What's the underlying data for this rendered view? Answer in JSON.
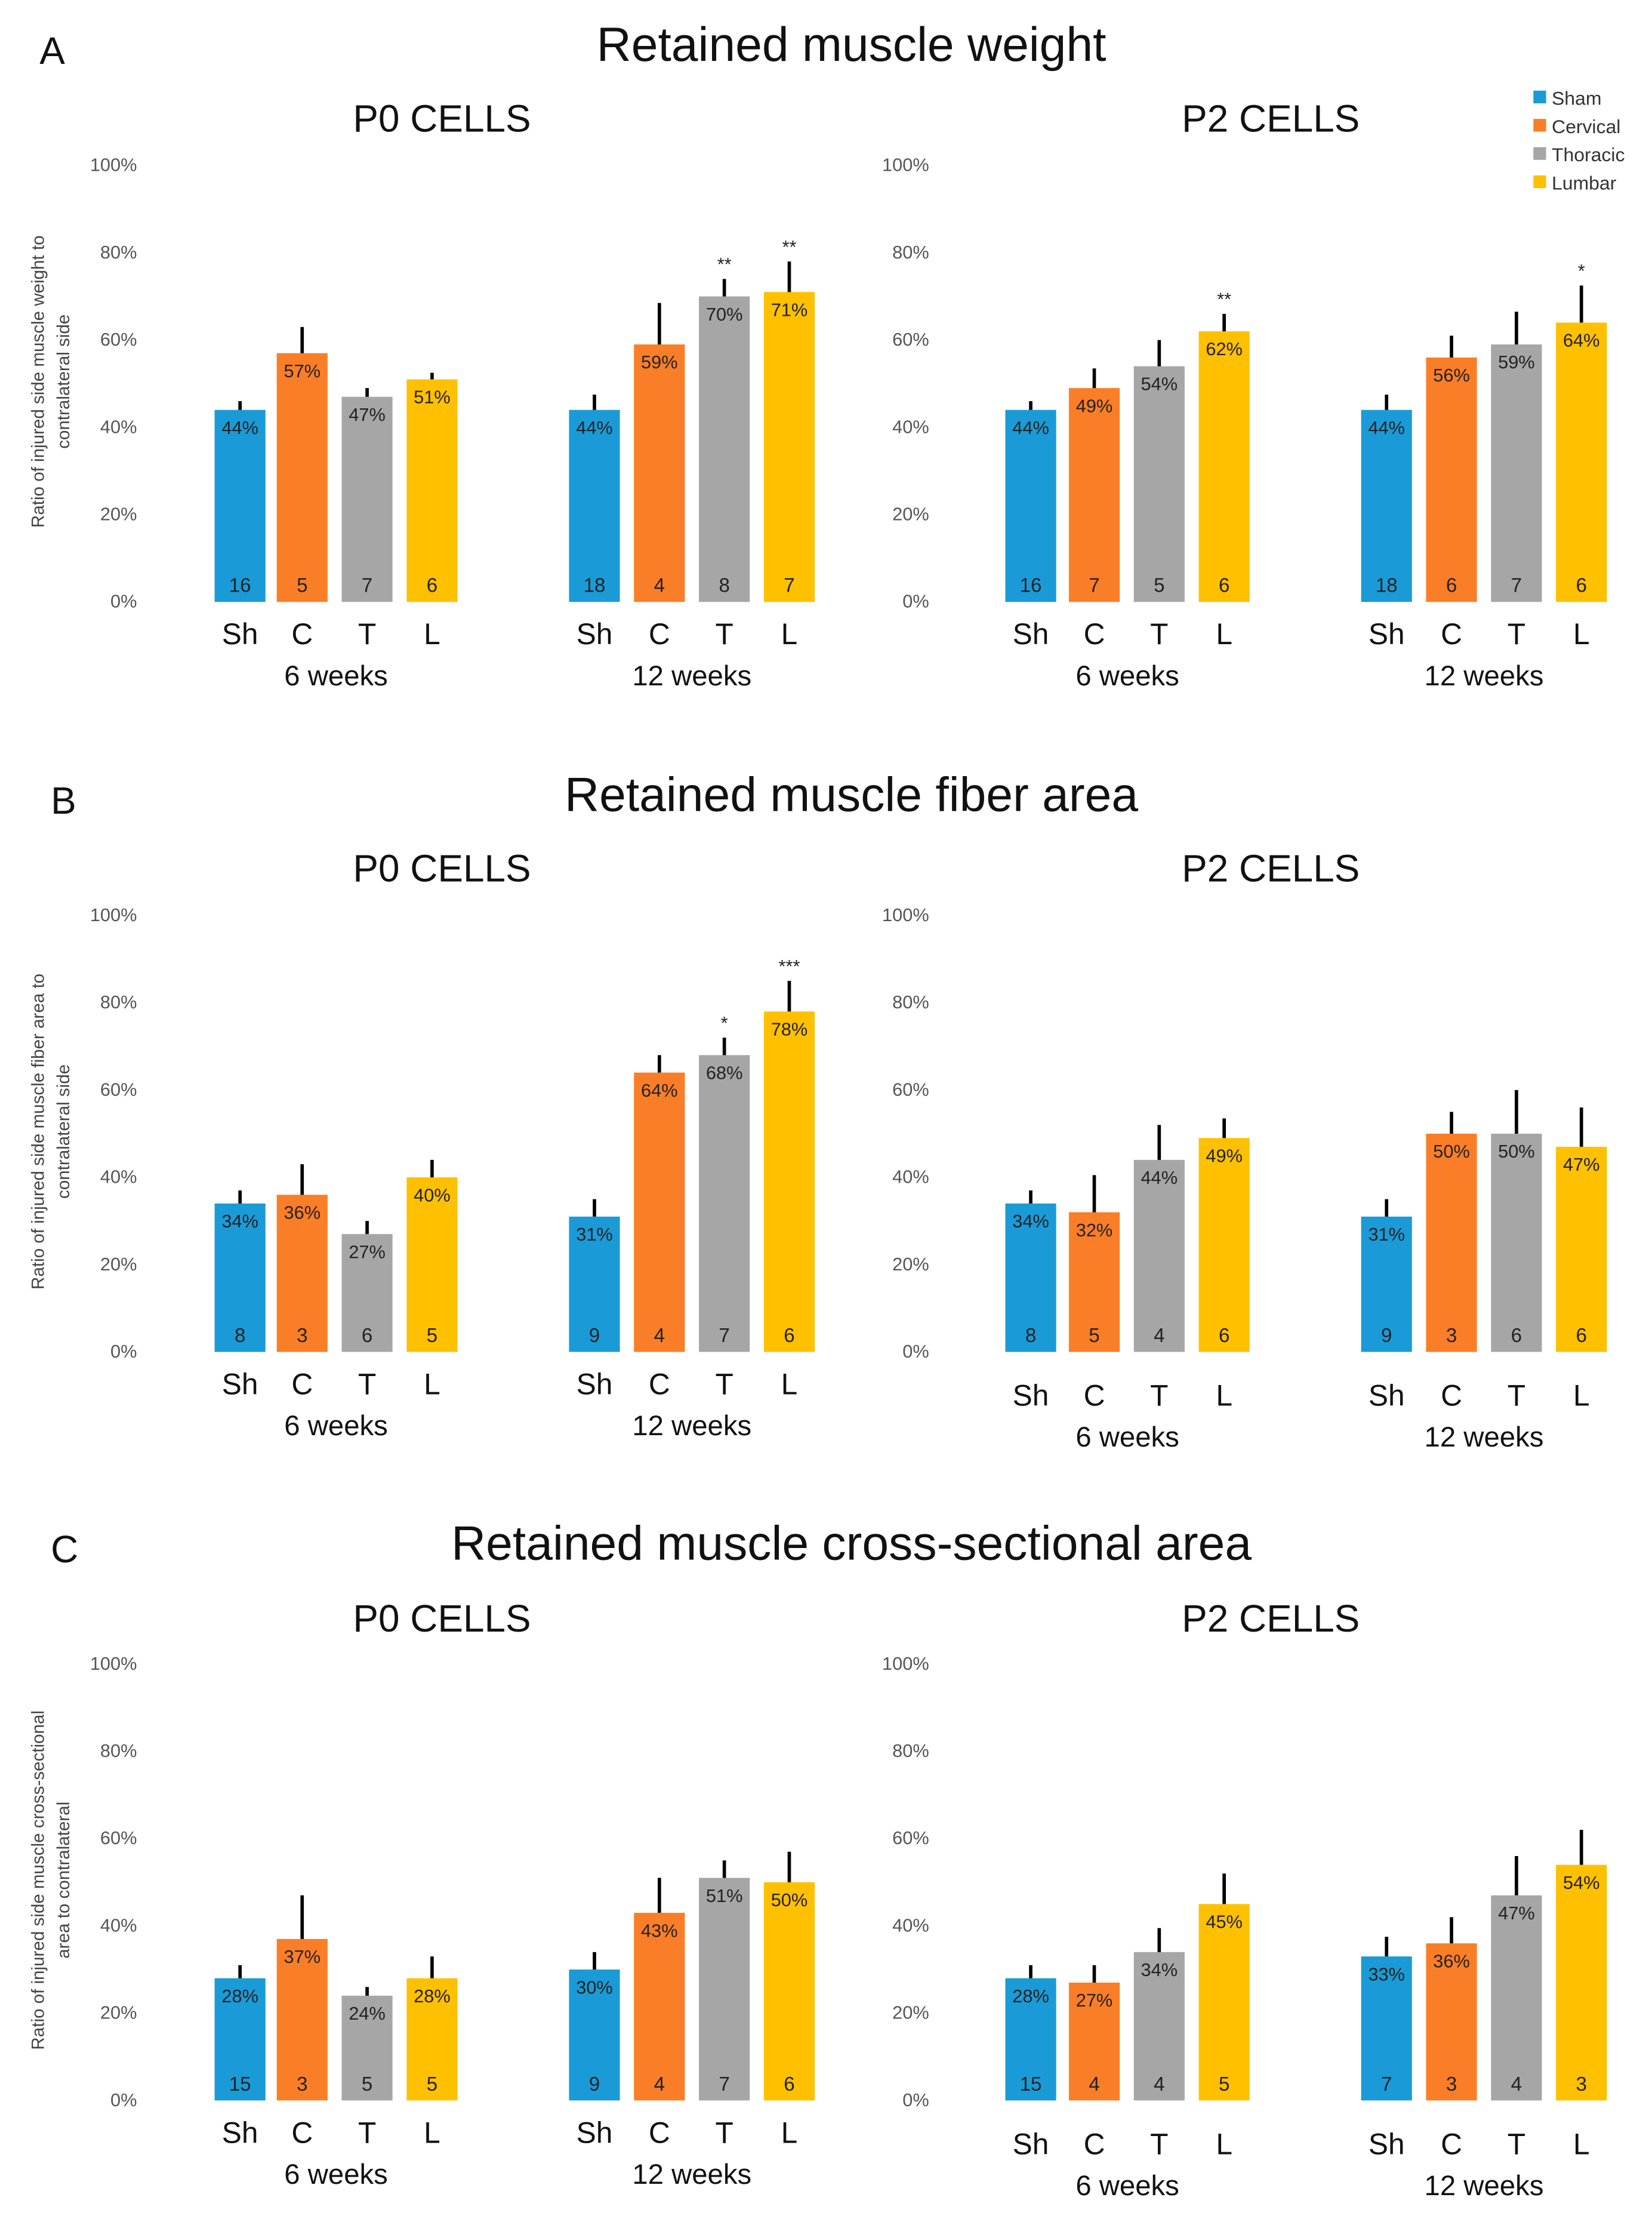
{
  "legend": [
    {
      "label": "Sham",
      "color": "#1A9BD7"
    },
    {
      "label": "Cervical",
      "color": "#FA7E27"
    },
    {
      "label": "Thoracic",
      "color": "#A6A6A6"
    },
    {
      "label": "Lumbar",
      "color": "#FFC000"
    }
  ],
  "chart_data": [
    {
      "type": "bar",
      "panel": "A",
      "title": "Retained muscle weight",
      "ylabel": [
        "Ratio of injured side muscle weight to",
        "contralateral side"
      ],
      "ylim": [
        0,
        100
      ],
      "yticks": [
        "0%",
        "20%",
        "40%",
        "60%",
        "80%",
        "100%"
      ],
      "charts": [
        {
          "subtitle": "P0 CELLS",
          "groups": [
            {
              "label": "6 weeks",
              "categories": [
                "Sh",
                "C",
                "T",
                "L"
              ],
              "values": [
                44,
                57,
                47,
                51
              ],
              "errors": [
                2,
                6,
                2,
                1.5
              ],
              "n": [
                "16",
                "5",
                "7",
                "6"
              ],
              "significance": [
                "",
                "",
                "",
                ""
              ]
            },
            {
              "label": "12 weeks",
              "categories": [
                "Sh",
                "C",
                "T",
                "L"
              ],
              "values": [
                44,
                59,
                70,
                71
              ],
              "errors": [
                3.5,
                9.5,
                4,
                7
              ],
              "n": [
                "18",
                "4",
                "8",
                "7"
              ],
              "significance": [
                "",
                "",
                "**",
                "**"
              ]
            }
          ]
        },
        {
          "subtitle": "P2 CELLS",
          "groups": [
            {
              "label": "6 weeks",
              "categories": [
                "Sh",
                "C",
                "T",
                "L"
              ],
              "values": [
                44,
                49,
                54,
                62
              ],
              "errors": [
                2,
                4.5,
                6,
                4
              ],
              "n": [
                "16",
                "7",
                "5",
                "6"
              ],
              "significance": [
                "",
                "",
                "",
                "**"
              ]
            },
            {
              "label": "12 weeks",
              "categories": [
                "Sh",
                "C",
                "T",
                "L"
              ],
              "values": [
                44,
                56,
                59,
                64
              ],
              "errors": [
                3.5,
                5,
                7.5,
                8.5
              ],
              "n": [
                "18",
                "6",
                "7",
                "6"
              ],
              "significance": [
                "",
                "",
                "",
                "*"
              ]
            }
          ]
        }
      ]
    },
    {
      "type": "bar",
      "panel": "B",
      "title": "Retained muscle fiber area",
      "ylabel": [
        "Ratio of injured side muscle fiber area to",
        "contralateral side"
      ],
      "ylim": [
        0,
        100
      ],
      "yticks": [
        "0%",
        "20%",
        "40%",
        "60%",
        "80%",
        "100%"
      ],
      "charts": [
        {
          "subtitle": "P0 CELLS",
          "groups": [
            {
              "label": "6 weeks",
              "categories": [
                "Sh",
                "C",
                "T",
                "L"
              ],
              "values": [
                34,
                36,
                27,
                40
              ],
              "errors": [
                3,
                7,
                3,
                4
              ],
              "n": [
                "8",
                "3",
                "6",
                "5"
              ],
              "significance": [
                "",
                "",
                "",
                ""
              ]
            },
            {
              "label": "12 weeks",
              "categories": [
                "Sh",
                "C",
                "T",
                "L"
              ],
              "values": [
                31,
                64,
                68,
                78
              ],
              "errors": [
                4,
                4,
                4,
                7
              ],
              "n": [
                "9",
                "4",
                "7",
                "6"
              ],
              "significance": [
                "",
                "",
                "*",
                "***"
              ]
            }
          ]
        },
        {
          "subtitle": "P2 CELLS",
          "groups": [
            {
              "label": "6 weeks",
              "categories": [
                "Sh",
                "C",
                "T",
                "L"
              ],
              "values": [
                34,
                32,
                44,
                49
              ],
              "errors": [
                3,
                8.5,
                8,
                4.5
              ],
              "n": [
                "8",
                "5",
                "4",
                "6"
              ],
              "significance": [
                "",
                "",
                "",
                ""
              ]
            },
            {
              "label": "12 weeks",
              "categories": [
                "Sh",
                "C",
                "T",
                "L"
              ],
              "values": [
                31,
                50,
                50,
                47
              ],
              "errors": [
                4,
                5,
                10,
                9
              ],
              "n": [
                "9",
                "3",
                "6",
                "6"
              ],
              "significance": [
                "",
                "",
                "",
                ""
              ]
            }
          ]
        }
      ]
    },
    {
      "type": "bar",
      "panel": "C",
      "title": "Retained muscle cross-sectional area",
      "ylabel": [
        "Ratio of injured side muscle cross-sectional",
        "area to contralateral"
      ],
      "ylim": [
        0,
        100
      ],
      "yticks": [
        "0%",
        "20%",
        "40%",
        "60%",
        "80%",
        "100%"
      ],
      "charts": [
        {
          "subtitle": "P0 CELLS",
          "groups": [
            {
              "label": "6 weeks",
              "categories": [
                "Sh",
                "C",
                "T",
                "L"
              ],
              "values": [
                28,
                37,
                24,
                28
              ],
              "errors": [
                3,
                10,
                2,
                5
              ],
              "n": [
                "15",
                "3",
                "5",
                "5"
              ],
              "significance": [
                "",
                "",
                "",
                ""
              ]
            },
            {
              "label": "12 weeks",
              "categories": [
                "Sh",
                "C",
                "T",
                "L"
              ],
              "values": [
                30,
                43,
                51,
                50
              ],
              "errors": [
                4,
                8,
                4,
                7
              ],
              "n": [
                "9",
                "4",
                "7",
                "6"
              ],
              "significance": [
                "",
                "",
                "",
                ""
              ]
            }
          ]
        },
        {
          "subtitle": "P2 CELLS",
          "groups": [
            {
              "label": "6 weeks",
              "categories": [
                "Sh",
                "C",
                "T",
                "L"
              ],
              "values": [
                28,
                27,
                34,
                45
              ],
              "errors": [
                3,
                4,
                5.5,
                7
              ],
              "n": [
                "15",
                "4",
                "4",
                "5"
              ],
              "significance": [
                "",
                "",
                "",
                ""
              ]
            },
            {
              "label": "12 weeks",
              "categories": [
                "Sh",
                "C",
                "T",
                "L"
              ],
              "values": [
                33,
                36,
                47,
                54
              ],
              "errors": [
                4.5,
                6,
                9,
                8
              ],
              "n": [
                "7",
                "3",
                "4",
                "3"
              ],
              "significance": [
                "",
                "",
                "",
                ""
              ]
            }
          ]
        }
      ]
    }
  ]
}
